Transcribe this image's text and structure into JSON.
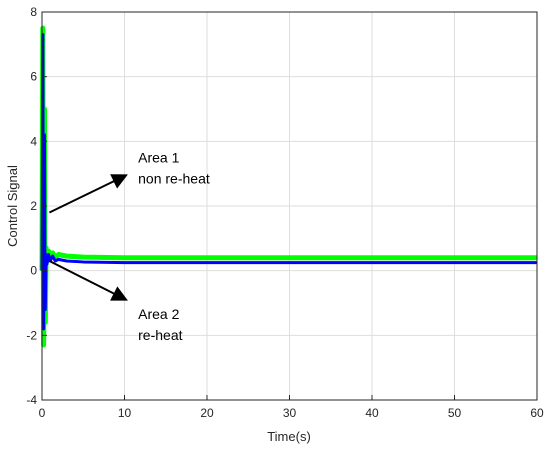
{
  "chart_data": {
    "type": "line",
    "title": "",
    "xlabel": "Time(s)",
    "ylabel": "Control Signal",
    "xlim": [
      0,
      60
    ],
    "ylim": [
      -4,
      8
    ],
    "xticks": [
      0,
      10,
      20,
      30,
      40,
      50,
      60
    ],
    "yticks": [
      -4,
      -2,
      0,
      2,
      4,
      6,
      8
    ],
    "grid": true,
    "series": [
      {
        "color": "#00ff00",
        "x": [
          0,
          0.1,
          0.15,
          0.2,
          0.25,
          0.3,
          0.35,
          0.4,
          0.5,
          0.6,
          0.8,
          1.0,
          1.3,
          1.6,
          2,
          3,
          5,
          10,
          20,
          30,
          40,
          50,
          60
        ],
        "y": [
          0,
          7.5,
          1.0,
          -2.3,
          0.2,
          5.0,
          0.5,
          -1.6,
          0.7,
          0.3,
          0.6,
          0.4,
          0.55,
          0.4,
          0.5,
          0.45,
          0.42,
          0.4,
          0.4,
          0.4,
          0.4,
          0.4,
          0.4
        ]
      },
      {
        "color": "#0000ff",
        "x": [
          0,
          0.1,
          0.15,
          0.2,
          0.25,
          0.3,
          0.35,
          0.4,
          0.5,
          0.6,
          0.8,
          1.0,
          1.3,
          1.6,
          2,
          3,
          5,
          10,
          20,
          30,
          40,
          50,
          60
        ],
        "y": [
          0,
          7.3,
          0.8,
          -1.8,
          0.1,
          4.2,
          0.3,
          -1.2,
          0.5,
          0.2,
          0.5,
          0.3,
          0.45,
          0.3,
          0.35,
          0.3,
          0.27,
          0.25,
          0.25,
          0.25,
          0.25,
          0.25,
          0.25
        ]
      }
    ],
    "annotations": [
      {
        "lines": [
          "Area 1",
          "non re-heat"
        ],
        "arrow_from": [
          0.9,
          1.8
        ],
        "arrow_to": [
          10.2,
          2.95
        ]
      },
      {
        "lines": [
          "Area 2",
          "re-heat"
        ],
        "arrow_from": [
          0.9,
          0.3
        ],
        "arrow_to": [
          10.2,
          -0.9
        ]
      }
    ]
  }
}
